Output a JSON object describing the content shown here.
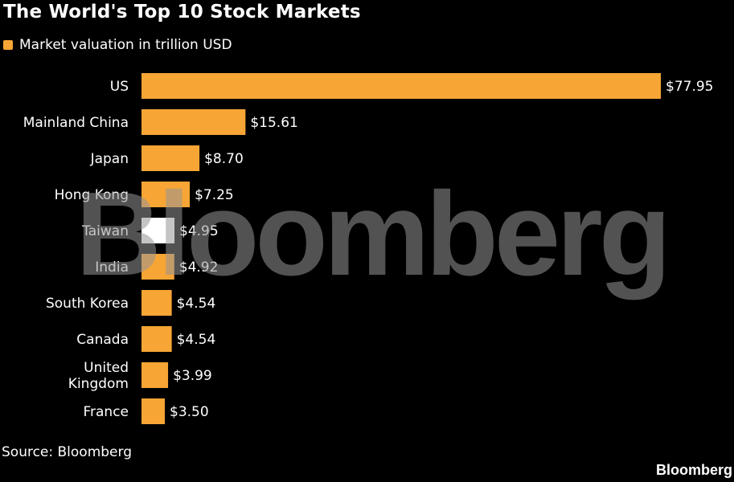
{
  "title": "The World's Top 10 Stock Markets",
  "legend_label": "Market valuation in trillion USD",
  "source": "Source: Bloomberg",
  "watermark": "Bloomberg",
  "brand": "Bloomberg",
  "colors": {
    "bar": "#f7a535",
    "highlight": "#ffffff",
    "background": "#000000"
  },
  "chart_data": {
    "type": "bar",
    "orientation": "horizontal",
    "title": "The World's Top 10 Stock Markets",
    "categories": [
      "US",
      "Mainland China",
      "Japan",
      "Hong Kong",
      "Taiwan",
      "India",
      "South Korea",
      "Canada",
      "United Kingdom",
      "France"
    ],
    "value_labels": [
      "$77.95",
      "$15.61",
      "$8.70",
      "$7.25",
      "$4.95",
      "$4.92",
      "$4.54",
      "$4.54",
      "$3.99",
      "$3.50"
    ],
    "series": [
      {
        "name": "Market valuation in trillion USD",
        "values": [
          77.95,
          15.61,
          8.7,
          7.25,
          4.95,
          4.92,
          4.54,
          4.54,
          3.99,
          3.5
        ]
      }
    ],
    "highlighted_category": "Taiwan",
    "xlim": [
      0,
      77.95
    ],
    "grid": false,
    "legend_position": "top-left"
  }
}
